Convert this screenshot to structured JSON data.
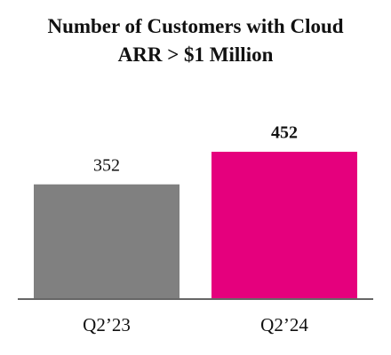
{
  "chart_data": {
    "type": "bar",
    "title": "Number of Customers with Cloud ARR > $1 Million",
    "categories": [
      "Q2’23",
      "Q2’24"
    ],
    "values": [
      352,
      452
    ],
    "colors": [
      "#808080",
      "#e5007d"
    ]
  }
}
